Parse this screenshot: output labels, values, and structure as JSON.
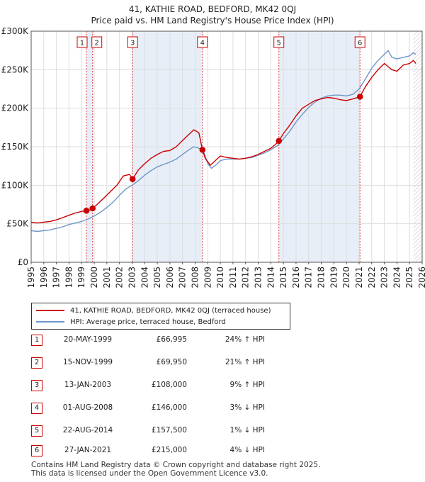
{
  "chart_data": {
    "type": "line",
    "title": "41, KATHIE ROAD, BEDFORD, MK42 0QJ",
    "subtitle": "Price paid vs. HM Land Registry's House Price Index (HPI)",
    "xlim": [
      1995,
      2026
    ],
    "ylim": [
      0,
      300000
    ],
    "y_ticks": [
      {
        "value": 0,
        "label": "£0"
      },
      {
        "value": 50000,
        "label": "£50K"
      },
      {
        "value": 100000,
        "label": "£100K"
      },
      {
        "value": 150000,
        "label": "£150K"
      },
      {
        "value": 200000,
        "label": "£200K"
      },
      {
        "value": 250000,
        "label": "£250K"
      },
      {
        "value": 300000,
        "label": "£300K"
      }
    ],
    "x_ticks": [
      "1995",
      "1996",
      "1997",
      "1998",
      "1999",
      "2000",
      "2001",
      "2002",
      "2003",
      "2004",
      "2005",
      "2006",
      "2007",
      "2008",
      "2009",
      "2010",
      "2011",
      "2012",
      "2013",
      "2014",
      "2015",
      "2016",
      "2017",
      "2018",
      "2019",
      "2020",
      "2021",
      "2022",
      "2023",
      "2024",
      "2025",
      "2026"
    ],
    "grid": true,
    "colors": {
      "property": "#cc0000",
      "hpi": "#6f95c8",
      "band": "#e8eef8",
      "vline": "#dd4444",
      "grid": "#dddddd"
    },
    "series": [
      {
        "name": "41, KATHIE ROAD, BEDFORD, MK42 0QJ (terraced house)",
        "color": "#cc0000",
        "x": [
          1995.0,
          1995.5,
          1996.0,
          1996.5,
          1997.0,
          1997.5,
          1998.0,
          1998.5,
          1999.0,
          1999.38,
          1999.7,
          1999.87,
          2000.3,
          2000.8,
          2001.3,
          2001.8,
          2002.3,
          2002.8,
          2003.04,
          2003.5,
          2004.0,
          2004.5,
          2005.0,
          2005.5,
          2006.0,
          2006.5,
          2007.0,
          2007.5,
          2007.9,
          2008.3,
          2008.58,
          2008.8,
          2009.2,
          2009.6,
          2010.0,
          2010.5,
          2011.0,
          2011.5,
          2012.0,
          2012.5,
          2013.0,
          2013.5,
          2014.0,
          2014.3,
          2014.64,
          2015.0,
          2015.5,
          2016.0,
          2016.5,
          2017.0,
          2017.5,
          2018.0,
          2018.5,
          2019.0,
          2019.5,
          2020.0,
          2020.5,
          2021.07,
          2021.5,
          2022.0,
          2022.5,
          2023.0,
          2023.3,
          2023.6,
          2024.0,
          2024.5,
          2025.0,
          2025.3,
          2025.5
        ],
        "y": [
          52000,
          51000,
          52000,
          53000,
          55000,
          58000,
          61000,
          64000,
          66000,
          66995,
          68000,
          69950,
          76000,
          84000,
          92000,
          100000,
          112000,
          114000,
          108000,
          120000,
          128000,
          135000,
          140000,
          144000,
          145000,
          150000,
          158000,
          166000,
          172000,
          168000,
          146000,
          135000,
          126000,
          132000,
          138000,
          136000,
          135000,
          134000,
          135000,
          137000,
          140000,
          144000,
          148000,
          152000,
          157500,
          167000,
          178000,
          190000,
          200000,
          205000,
          210000,
          212000,
          214000,
          213000,
          211000,
          210000,
          212000,
          215000,
          228000,
          240000,
          250000,
          258000,
          254000,
          250000,
          248000,
          256000,
          258000,
          262000,
          258000
        ]
      },
      {
        "name": "HPI: Average price, terraced house, Bedford",
        "color": "#6f95c8",
        "x": [
          1995.0,
          1995.5,
          1996.0,
          1996.5,
          1997.0,
          1997.5,
          1998.0,
          1998.5,
          1999.0,
          1999.5,
          2000.0,
          2000.5,
          2001.0,
          2001.5,
          2002.0,
          2002.5,
          2003.0,
          2003.5,
          2004.0,
          2004.5,
          2005.0,
          2005.5,
          2006.0,
          2006.5,
          2007.0,
          2007.5,
          2007.9,
          2008.3,
          2008.7,
          2009.0,
          2009.3,
          2009.7,
          2010.0,
          2010.5,
          2011.0,
          2011.5,
          2012.0,
          2012.5,
          2013.0,
          2013.5,
          2014.0,
          2014.5,
          2015.0,
          2015.5,
          2016.0,
          2016.5,
          2017.0,
          2017.5,
          2018.0,
          2018.5,
          2019.0,
          2019.5,
          2020.0,
          2020.5,
          2021.0,
          2021.5,
          2022.0,
          2022.5,
          2023.0,
          2023.3,
          2023.6,
          2024.0,
          2024.5,
          2025.0,
          2025.3,
          2025.5
        ],
        "y": [
          41000,
          40000,
          41000,
          42000,
          44000,
          46000,
          49000,
          51000,
          53000,
          56000,
          60000,
          65000,
          71000,
          78000,
          87000,
          95000,
          100000,
          106000,
          113000,
          119000,
          124000,
          127000,
          130000,
          134000,
          140000,
          146000,
          150000,
          148000,
          143000,
          128000,
          122000,
          127000,
          132000,
          134000,
          134000,
          134000,
          135000,
          136000,
          139000,
          142000,
          146000,
          151000,
          160000,
          170000,
          182000,
          192000,
          201000,
          208000,
          213000,
          216000,
          217000,
          217000,
          216000,
          218000,
          225000,
          238000,
          252000,
          262000,
          270000,
          275000,
          266000,
          264000,
          266000,
          268000,
          272000,
          270000
        ]
      }
    ],
    "sale_markers": [
      {
        "label": "1",
        "x": 1999.38,
        "y": 66995
      },
      {
        "label": "2",
        "x": 1999.87,
        "y": 69950
      },
      {
        "label": "3",
        "x": 2003.04,
        "y": 108000
      },
      {
        "label": "4",
        "x": 2008.58,
        "y": 146000
      },
      {
        "label": "5",
        "x": 2014.64,
        "y": 157500
      },
      {
        "label": "6",
        "x": 2021.07,
        "y": 215000
      }
    ],
    "shaded_bands": [
      [
        1999.38,
        1999.87
      ],
      [
        2003.04,
        2008.58
      ],
      [
        2014.64,
        2021.07
      ]
    ],
    "hatched_after": 2025.3
  },
  "legend": {
    "property_label": "41, KATHIE ROAD, BEDFORD, MK42 0QJ (terraced house)",
    "hpi_label": "HPI: Average price, terraced house, Bedford"
  },
  "sales": [
    {
      "num": "1",
      "date": "20-MAY-1999",
      "price": "£66,995",
      "hpi": "24% ↑ HPI"
    },
    {
      "num": "2",
      "date": "15-NOV-1999",
      "price": "£69,950",
      "hpi": "21% ↑ HPI"
    },
    {
      "num": "3",
      "date": "13-JAN-2003",
      "price": "£108,000",
      "hpi": "9% ↑ HPI"
    },
    {
      "num": "4",
      "date": "01-AUG-2008",
      "price": "£146,000",
      "hpi": "3% ↓ HPI"
    },
    {
      "num": "5",
      "date": "22-AUG-2014",
      "price": "£157,500",
      "hpi": "1% ↓ HPI"
    },
    {
      "num": "6",
      "date": "27-JAN-2021",
      "price": "£215,000",
      "hpi": "4% ↓ HPI"
    }
  ],
  "footer": {
    "line1": "Contains HM Land Registry data © Crown copyright and database right 2025.",
    "line2": "This data is licensed under the Open Government Licence v3.0."
  }
}
